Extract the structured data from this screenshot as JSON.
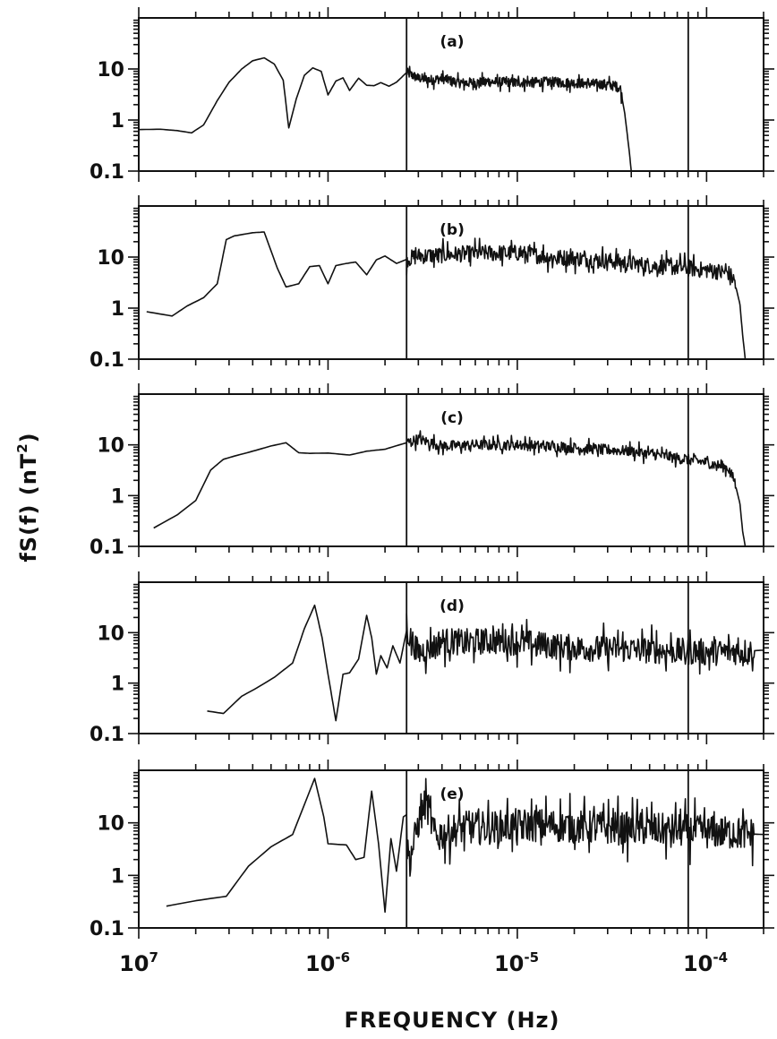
{
  "chart_data": [
    {
      "type": "line",
      "panel_label": "(a)",
      "xscale": "log",
      "yscale": "log",
      "xlim": [
        1e-07,
        0.0002
      ],
      "ylim": [
        0.1,
        100
      ],
      "reference_lines_x": [
        2.6e-06,
        8e-05
      ],
      "series": [
        {
          "x": [
            1e-07,
            1.3e-07,
            1.6e-07,
            1.9e-07,
            2.2e-07,
            2.6e-07,
            3e-07,
            3.5e-07,
            4e-07,
            4.6e-07,
            5.2e-07,
            5.8e-07,
            6.2e-07,
            6.8e-07,
            7.5e-07,
            8.3e-07,
            9.2e-07,
            1e-06,
            1.1e-06,
            1.2e-06,
            1.3e-06,
            1.45e-06,
            1.6e-06,
            1.75e-06,
            1.9e-06,
            2.1e-06,
            2.3e-06,
            2.6e-06,
            3e-06,
            3.5e-06,
            4e-06,
            5e-06,
            7e-06,
            1e-05,
            1.5e-05,
            2e-05,
            3e-05,
            3.5e-05,
            3.7e-05,
            3.9e-05,
            4e-05
          ],
          "y": [
            0.65,
            0.66,
            0.62,
            0.56,
            0.8,
            2.4,
            5.5,
            10,
            14.5,
            16.5,
            12.5,
            6,
            0.7,
            2.6,
            7.5,
            10.5,
            9,
            3.1,
            5.8,
            6.7,
            3.8,
            6.6,
            4.8,
            4.7,
            5.4,
            4.6,
            5.5,
            8.5,
            6.6,
            6.1,
            6.5,
            5.3,
            5.6,
            5.4,
            5.6,
            5.3,
            5,
            4.3,
            1.3,
            0.25,
            0.1
          ],
          "noise": 0.12,
          "noise_from": 2.6e-06
        }
      ]
    },
    {
      "type": "line",
      "panel_label": "(b)",
      "xscale": "log",
      "yscale": "log",
      "xlim": [
        1e-07,
        0.0002
      ],
      "ylim": [
        0.1,
        100
      ],
      "reference_lines_x": [
        2.6e-06,
        8e-05
      ],
      "series": [
        {
          "x": [
            1.1e-07,
            1.5e-07,
            1.8e-07,
            2.2e-07,
            2.6e-07,
            2.9e-07,
            3.2e-07,
            4e-07,
            4.6e-07,
            5.4e-07,
            6e-07,
            7e-07,
            8e-07,
            9e-07,
            1e-06,
            1.1e-06,
            1.25e-06,
            1.4e-06,
            1.6e-06,
            1.8e-06,
            2e-06,
            2.3e-06,
            2.6e-06,
            3e-06,
            4e-06,
            5e-06,
            7e-06,
            1e-05,
            1.5e-05,
            2e-05,
            3e-05,
            5e-05,
            8e-05,
            0.00013,
            0.00014,
            0.00015,
            0.000155,
            0.00016
          ],
          "y": [
            0.85,
            0.7,
            1.1,
            1.6,
            3,
            22,
            26,
            30,
            31,
            6,
            2.6,
            3,
            6.5,
            6.8,
            3,
            6.8,
            7.5,
            8,
            4.5,
            8.8,
            10.5,
            7.5,
            9,
            10.5,
            11,
            11.5,
            12,
            12,
            10,
            9.5,
            8.5,
            6.8,
            6,
            5,
            3.5,
            1.2,
            0.3,
            0.1
          ],
          "noise": 0.2,
          "noise_from": 2.6e-06
        }
      ]
    },
    {
      "type": "line",
      "panel_label": "(c)",
      "xscale": "log",
      "yscale": "log",
      "xlim": [
        1e-07,
        0.0002
      ],
      "ylim": [
        0.1,
        100
      ],
      "reference_lines_x": [
        2.6e-06,
        8e-05
      ],
      "series": [
        {
          "x": [
            1.2e-07,
            1.6e-07,
            2e-07,
            2.4e-07,
            2.8e-07,
            3.2e-07,
            4e-07,
            5e-07,
            6e-07,
            7e-07,
            8e-07,
            1e-06,
            1.3e-06,
            1.6e-06,
            2e-06,
            2.6e-06,
            3e-06,
            4e-06,
            6e-06,
            1e-05,
            2e-05,
            4e-05,
            7e-05,
            0.0001,
            0.00013,
            0.00014,
            0.00015,
            0.000155,
            0.00016
          ],
          "y": [
            0.23,
            0.42,
            0.8,
            3.2,
            5.2,
            6,
            7.5,
            9.5,
            11,
            7,
            6.8,
            6.9,
            6.3,
            7.5,
            8.2,
            11,
            13,
            9.5,
            10,
            10,
            8.8,
            7.5,
            5.5,
            4.5,
            3.5,
            2,
            0.7,
            0.2,
            0.1
          ],
          "noise": 0.13,
          "noise_from": 2.6e-06
        }
      ]
    },
    {
      "type": "line",
      "panel_label": "(d)",
      "xscale": "log",
      "yscale": "log",
      "xlim": [
        1e-07,
        0.0002
      ],
      "ylim": [
        0.1,
        100
      ],
      "reference_lines_x": [
        2.6e-06,
        8e-05
      ],
      "series": [
        {
          "x": [
            2.3e-07,
            2.8e-07,
            3.5e-07,
            4.2e-07,
            5.2e-07,
            6.5e-07,
            7.5e-07,
            8.5e-07,
            9.3e-07,
            1e-06,
            1.1e-06,
            1.2e-06,
            1.3e-06,
            1.45e-06,
            1.6e-06,
            1.7e-06,
            1.8e-06,
            1.9e-06,
            2.05e-06,
            2.2e-06,
            2.4e-06,
            2.6e-06,
            3e-06,
            3.5e-06,
            4e-06,
            5e-06,
            7e-06,
            1e-05,
            1.5e-05,
            2e-05,
            3e-05,
            5e-05,
            8e-05,
            0.00012,
            0.00016,
            0.0002
          ],
          "y": [
            0.28,
            0.25,
            0.55,
            0.8,
            1.3,
            2.5,
            12,
            35,
            8,
            1.5,
            0.18,
            1.5,
            1.6,
            3,
            22,
            8,
            1.5,
            3.5,
            2,
            5.5,
            2.5,
            11,
            4,
            5,
            7,
            6.5,
            6.8,
            6.5,
            5.5,
            5,
            4.8,
            4.5,
            4.2,
            4.1,
            4.3,
            4.5
          ],
          "noise": 0.33,
          "noise_from": 2.6e-06
        }
      ]
    },
    {
      "type": "line",
      "panel_label": "(e)",
      "xscale": "log",
      "yscale": "log",
      "xlim": [
        1e-07,
        0.0002
      ],
      "ylim": [
        0.1,
        100
      ],
      "reference_lines_x": [
        2.6e-06,
        8e-05
      ],
      "series": [
        {
          "x": [
            1.4e-07,
            2e-07,
            2.9e-07,
            3.8e-07,
            5e-07,
            6.5e-07,
            8.5e-07,
            9.5e-07,
            1e-06,
            1.25e-06,
            1.4e-06,
            1.55e-06,
            1.7e-06,
            1.85e-06,
            2e-06,
            2.15e-06,
            2.3e-06,
            2.5e-06,
            2.7e-06,
            3e-06,
            3.3e-06,
            3.7e-06,
            4.2e-06,
            5e-06,
            7e-06,
            1e-05,
            1.5e-05,
            2e-05,
            3e-05,
            5e-05,
            8e-05,
            0.00012,
            0.00016,
            0.0002
          ],
          "y": [
            0.26,
            0.33,
            0.4,
            1.5,
            3.5,
            6,
            70,
            13,
            4,
            3.8,
            2,
            2.2,
            40,
            4,
            0.2,
            5,
            1.2,
            13,
            1.8,
            10,
            25,
            5,
            6.5,
            8,
            8,
            9,
            9,
            8.5,
            8,
            7.5,
            7,
            6.5,
            6.2,
            6
          ],
          "noise": 0.4,
          "noise_from": 2.6e-06
        }
      ]
    }
  ],
  "axes": {
    "ylabel": "fS(f) (nT",
    "ylabel_sup": "2",
    "ylabel_close": ")",
    "xlabel": "FREQUENCY (Hz)",
    "ytick_labels": [
      "0.1",
      "1",
      "10"
    ],
    "xtick_bases": [
      "10",
      "10",
      "10",
      "10"
    ],
    "xtick_exps": [
      "7",
      "-6",
      "-5",
      "-4"
    ]
  }
}
